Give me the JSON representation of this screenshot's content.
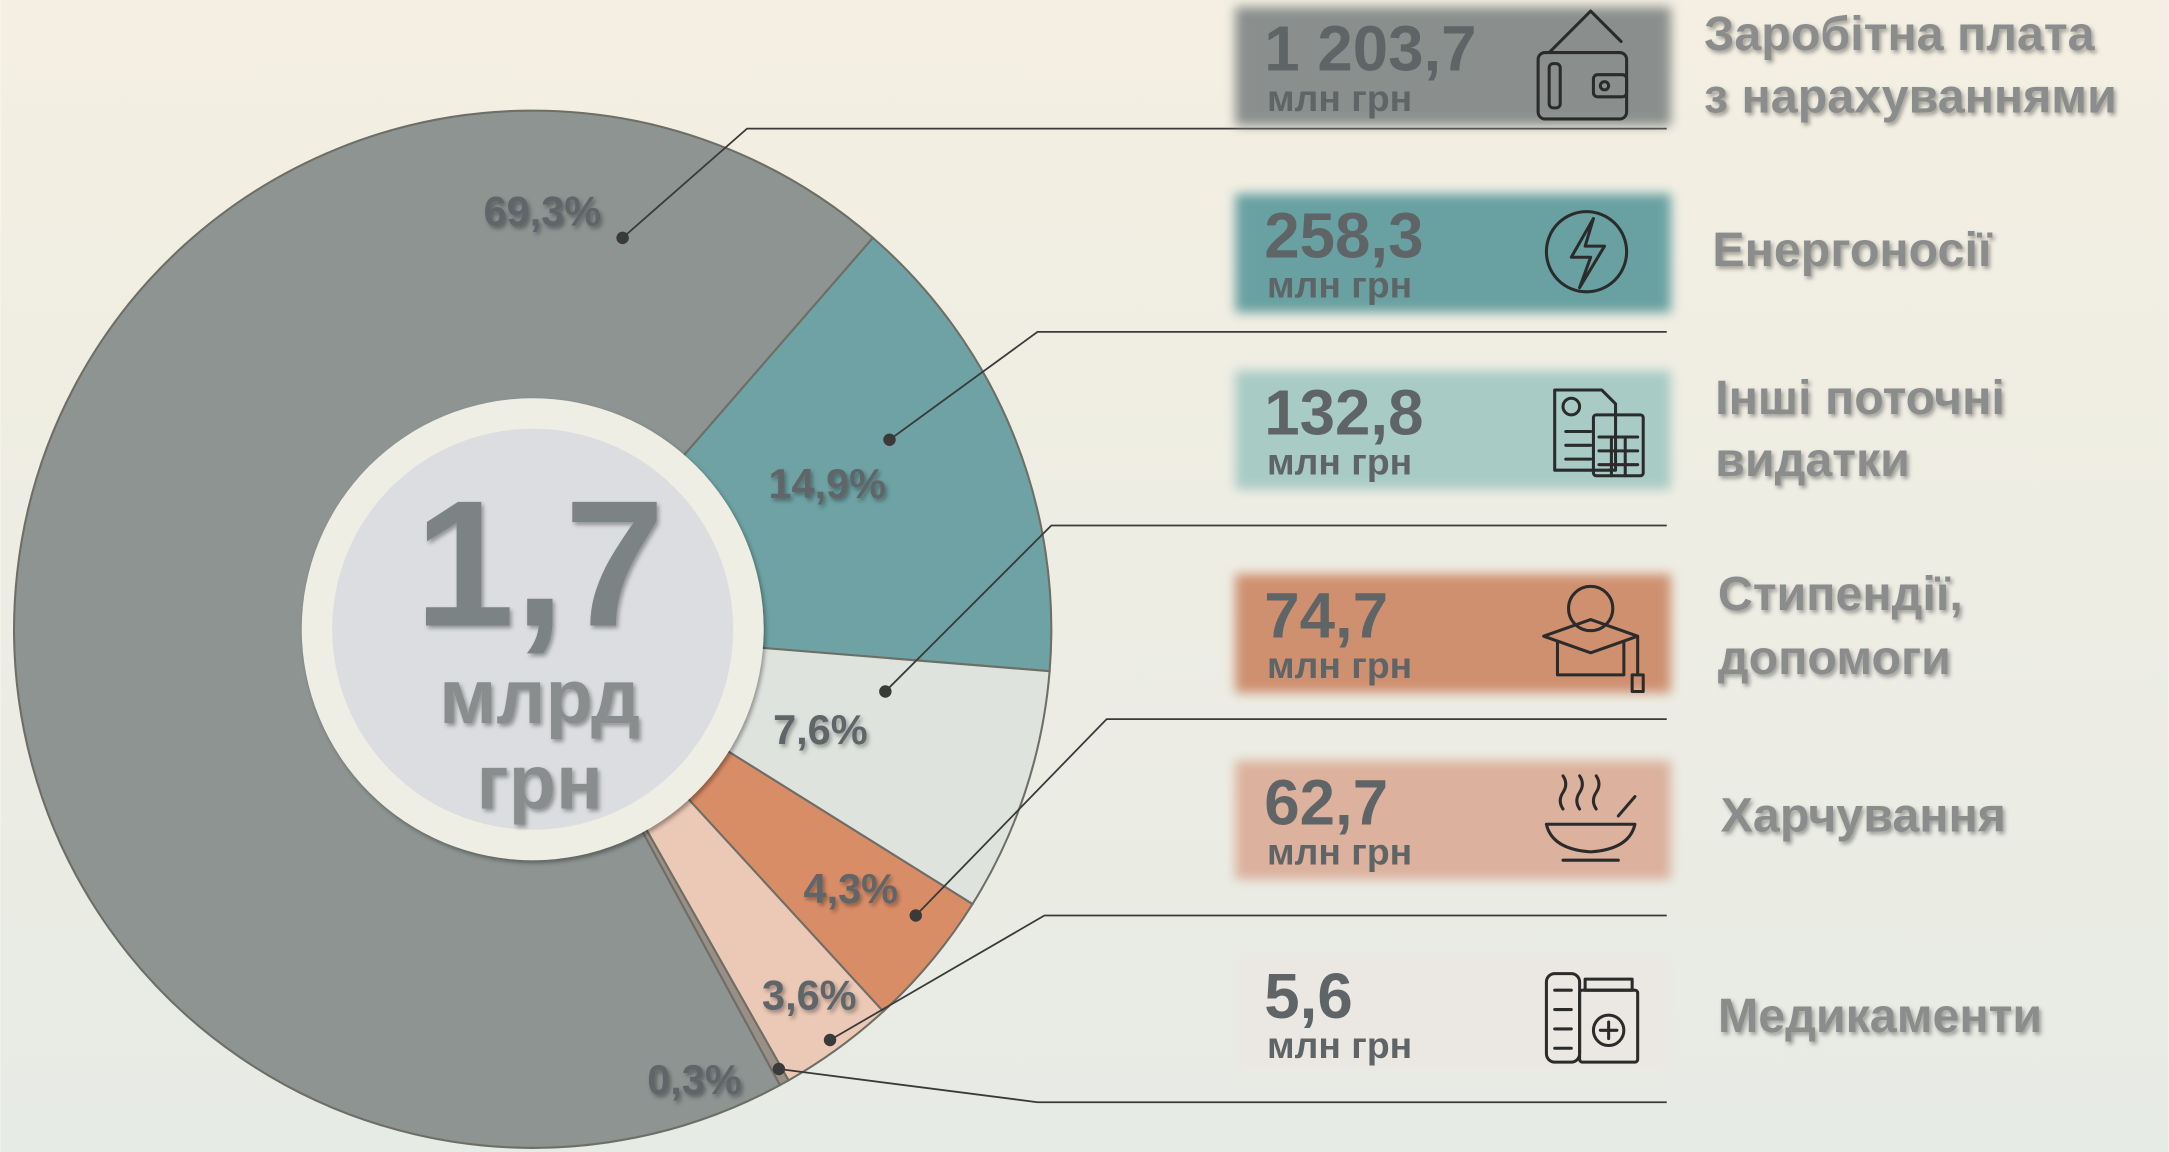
{
  "chart_data": {
    "type": "pie",
    "center_value": {
      "value": 1.7,
      "label": "1,7"
    },
    "center_unit": [
      "млрд",
      "грн"
    ],
    "categories": [
      [
        "Заробітна плата",
        "з нарахуваннями"
      ],
      [
        "Енергоносії"
      ],
      [
        "Інші поточні",
        "видатки"
      ],
      [
        "Стипендії,",
        "допомоги"
      ],
      [
        "Харчування"
      ],
      [
        "Медикаменти"
      ]
    ],
    "values": [
      69.3,
      14.9,
      7.6,
      4.3,
      3.6,
      0.3
    ],
    "value_labels": [
      "69,3%",
      "14,9%",
      "7,6%",
      "4,3%",
      "3,6%",
      "0,3%"
    ],
    "amounts": [
      1203.7,
      258.3,
      132.8,
      74.7,
      62.7,
      5.6
    ],
    "amount_labels": [
      "1 203,7",
      "258,3",
      "132,8",
      "74,7",
      "62,7",
      "5,6"
    ],
    "amount_unit": "млн грн",
    "colors": [
      "#8d9492",
      "#6ea2a4",
      "#dfe3de",
      "#d98d67",
      "#ecc8b6",
      "#9a8f86"
    ],
    "box_colors": [
      "#8a8f8d",
      "#69a1a2",
      "#a9cbc6",
      "#cf9070",
      "#dcb19d",
      "#ebe8e4"
    ]
  }
}
